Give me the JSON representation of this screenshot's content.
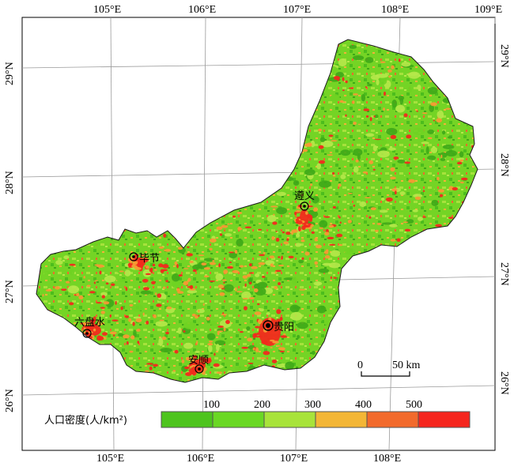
{
  "longitude_labels": [
    "105°E",
    "106°E",
    "107°E",
    "108°E",
    "109°E"
  ],
  "latitude_labels": [
    "29°N",
    "28°N",
    "27°N",
    "26°N"
  ],
  "cities": [
    {
      "name": "遵义",
      "capital": false
    },
    {
      "name": "毕节",
      "capital": false
    },
    {
      "name": "六盘水",
      "capital": false
    },
    {
      "name": "贵阳",
      "capital": true
    },
    {
      "name": "安顺",
      "capital": false
    }
  ],
  "legend": {
    "title": "人口密度(人/km²)",
    "breaks": [
      "100",
      "200",
      "300",
      "400",
      "500"
    ],
    "colors": [
      "#4ec41e",
      "#6ad824",
      "#a8e33a",
      "#f3b636",
      "#f26a2c",
      "#f5261e"
    ]
  },
  "scale_bar": {
    "start": "0",
    "end": "50 km"
  },
  "colors": {
    "base": "#6fd322",
    "dark_green": "#3ea818",
    "light_green": "#b6e84a",
    "orange": "#f59a33",
    "red": "#f22a1c",
    "grid": "#9a9a9a"
  }
}
